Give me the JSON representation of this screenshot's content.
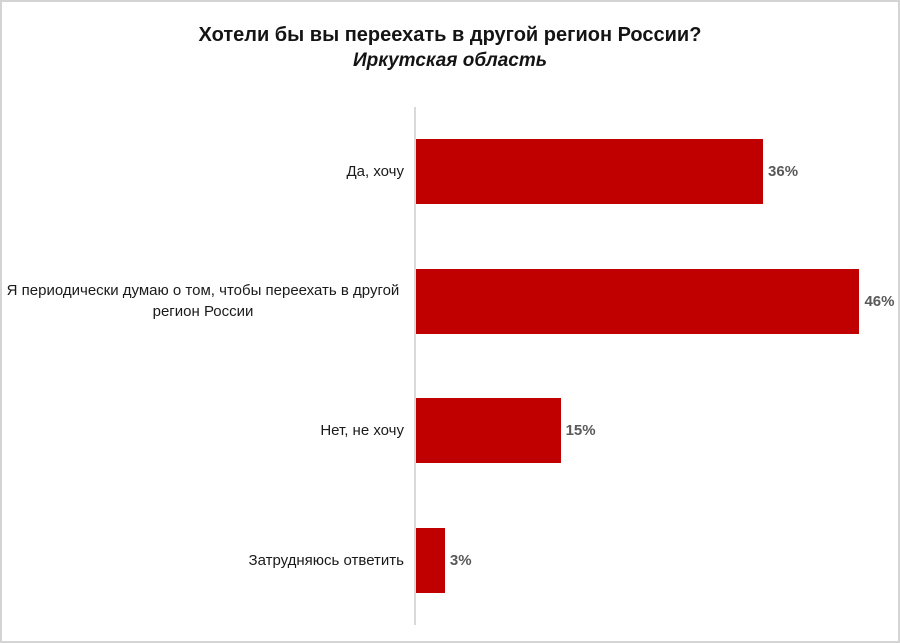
{
  "window": {
    "background": "#ffffff",
    "frame_border_color": "#d4d4d4"
  },
  "chart_data": {
    "type": "bar",
    "orientation": "horizontal",
    "title": "Хотели бы вы переехать в другой регион России?",
    "subtitle": "Иркутская область",
    "categories": [
      "Да, хочу",
      "Я периодически думаю о том, чтобы переехать в другой регион России",
      "Нет, не хочу",
      "Затрудняюсь ответить"
    ],
    "values": [
      36,
      46,
      15,
      3
    ],
    "data_labels": [
      "36%",
      "46%",
      "15%",
      "3%"
    ],
    "value_suffix": "%",
    "xlabel": "",
    "ylabel": "",
    "xlim": [
      0,
      50
    ],
    "grid": false,
    "legend": "none",
    "data_label_position": "outside-end",
    "bar_color": "#c00000",
    "value_label_color": "#595959",
    "category_label_color": "#1a1a1a",
    "axis_line_color": "#d9d9d9",
    "title_color": "#141414"
  }
}
